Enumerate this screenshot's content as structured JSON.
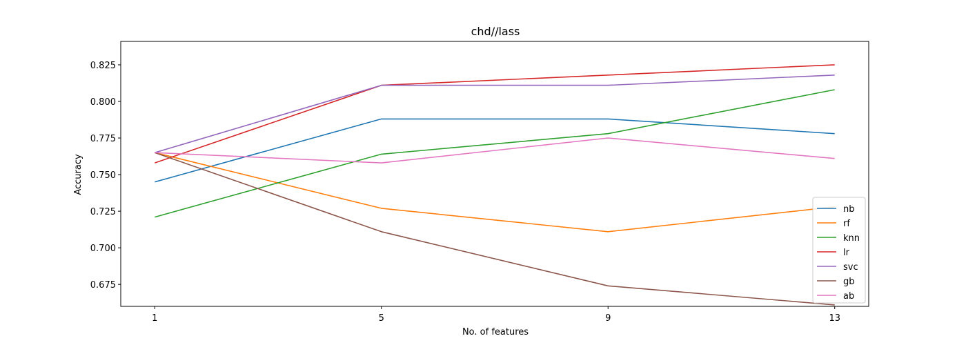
{
  "chart_data": {
    "type": "line",
    "title": "chd//lass",
    "xlabel": "No. of features",
    "ylabel": "Accuracy",
    "x": [
      1,
      5,
      9,
      13
    ],
    "xticks": [
      "1",
      "5",
      "9",
      "13"
    ],
    "xlim": [
      0.4,
      13.6
    ],
    "ylim": [
      0.66,
      0.841
    ],
    "yticks": [
      "0.675",
      "0.700",
      "0.725",
      "0.750",
      "0.775",
      "0.800",
      "0.825"
    ],
    "grid": false,
    "legend_position": "lower right",
    "series": [
      {
        "name": "nb",
        "color": "#1f77b4",
        "values": [
          0.745,
          0.788,
          0.788,
          0.778
        ]
      },
      {
        "name": "rf",
        "color": "#ff7f0e",
        "values": [
          0.765,
          0.727,
          0.711,
          0.728
        ]
      },
      {
        "name": "knn",
        "color": "#2ca02c",
        "values": [
          0.721,
          0.764,
          0.778,
          0.808
        ]
      },
      {
        "name": "lr",
        "color": "#d62728",
        "values": [
          0.758,
          0.811,
          0.818,
          0.825
        ]
      },
      {
        "name": "svc",
        "color": "#9467bd",
        "values": [
          0.765,
          0.811,
          0.811,
          0.818
        ]
      },
      {
        "name": "gb",
        "color": "#8c564b",
        "values": [
          0.765,
          0.711,
          0.674,
          0.661
        ]
      },
      {
        "name": "ab",
        "color": "#e377c2",
        "values": [
          0.765,
          0.758,
          0.775,
          0.761
        ]
      }
    ]
  }
}
